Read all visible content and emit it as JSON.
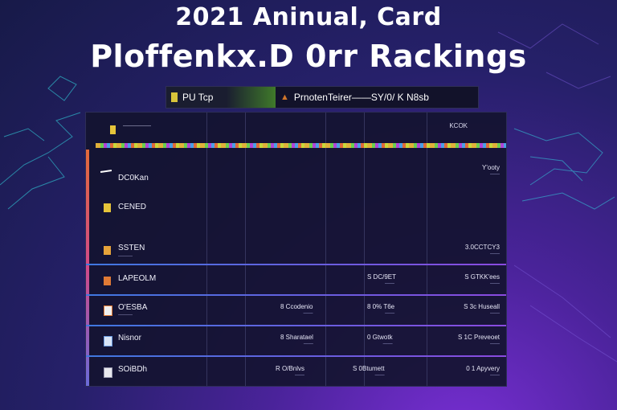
{
  "title_line1": "2021 Aninual, Card",
  "title_line2": "Ploffenkx.D 0rr  Rackings",
  "tabs": {
    "left_label": "PU Tcp",
    "right_label": "PrnotenTeirer——SY/0/ K N8sb"
  },
  "board": {
    "header_label": "—————",
    "header_right": "KCOK",
    "rows": [
      {
        "name": "DC0Kan",
        "sub": "",
        "cells": [
          {
            "value": "Y'ooty",
            "sub": "——"
          }
        ]
      },
      {
        "name": "CENED",
        "sub": "",
        "cells": []
      },
      {
        "name": "SSTEN",
        "sub": "———",
        "cells": [
          {
            "value": "3.0CCTCY3",
            "sub": "——"
          }
        ]
      },
      {
        "name": "LAPEOLM",
        "sub": "",
        "cells": [
          {
            "value": "S DC/9ET",
            "sub": "——"
          },
          {
            "value": "S GTKK'ees",
            "sub": "——"
          }
        ]
      },
      {
        "name": "O'ESBA",
        "sub": "———",
        "cells": [
          {
            "value": "8 Ccodenio",
            "sub": "——"
          },
          {
            "value": "8 0% T6e",
            "sub": "——"
          },
          {
            "value": "S 3c Huseall",
            "sub": "——"
          }
        ]
      },
      {
        "name": "Nisnor",
        "sub": "",
        "cells": [
          {
            "value": "8 Sharatael",
            "sub": "——"
          },
          {
            "value": "0 Gtwotk",
            "sub": "——"
          },
          {
            "value": "S 1C Preveoet",
            "sub": "——"
          }
        ]
      },
      {
        "name": "SOiBDh",
        "sub": "",
        "cells": [
          {
            "value": "R O/Bnlvs",
            "sub": "——"
          },
          {
            "value": "S 0Btumett",
            "sub": "——"
          },
          {
            "value": "0 1 Apyvery",
            "sub": "——"
          }
        ]
      }
    ]
  },
  "colors": {
    "accent_yellow": "#e6c43a",
    "accent_orange": "#e07a35",
    "accent_green": "#5fbf3f",
    "separator_blue": "#4a6ad8",
    "separator_purple": "#9a4ae0"
  }
}
